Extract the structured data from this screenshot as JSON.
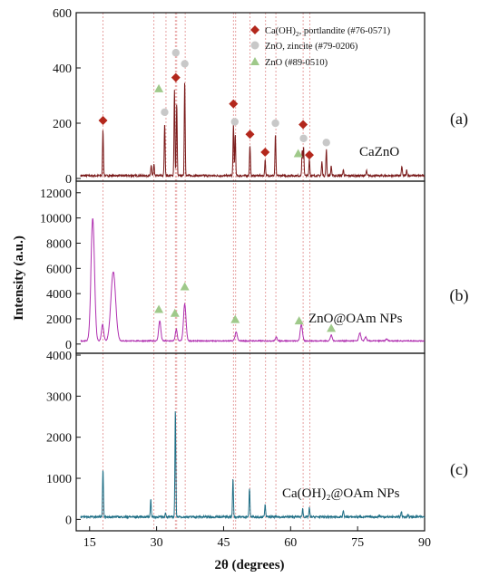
{
  "colors": {
    "caoh2_marker": "#b3271c",
    "zno_zincite_marker": "#c8c8c8",
    "zno_89_marker": "#9fc98a",
    "dash_line": "#e08a8a",
    "pattern_a": "#7a1a1a",
    "pattern_b": "#b02fb0",
    "pattern_c": "#1f6f86"
  },
  "legend": {
    "caoh2": {
      "text": "Ca(OH)",
      "sub": "2",
      "rest": ", portlandite (#76-0571)"
    },
    "zincite": {
      "text": "ZnO, zincite (#79-0206)"
    },
    "zno89": {
      "text": "ZnO (#89-0510)"
    }
  },
  "chart_data": {
    "type": "line",
    "xlabel": "2θ (degrees)",
    "ylabel": "Intensity (a.u.)",
    "xlim": [
      12,
      90
    ],
    "xticks": [
      "15",
      "30",
      "45",
      "60",
      "75",
      "90"
    ],
    "reference_lines": [
      18.0,
      29.4,
      32.1,
      34.2,
      34.5,
      36.4,
      47.2,
      47.7,
      50.9,
      54.4,
      56.7,
      62.8,
      64.3
    ],
    "panels": [
      {
        "tag": "(a)",
        "sample": "CaZnO",
        "ylim": [
          0,
          600
        ],
        "yticks": [
          "0",
          "200",
          "400",
          "600"
        ],
        "peaks": [
          [
            18.0,
            165
          ],
          [
            28.8,
            38
          ],
          [
            29.4,
            40
          ],
          [
            31.8,
            190
          ],
          [
            34.0,
            310
          ],
          [
            34.5,
            260
          ],
          [
            36.3,
            345
          ],
          [
            47.2,
            185
          ],
          [
            47.6,
            150
          ],
          [
            50.9,
            110
          ],
          [
            54.3,
            60
          ],
          [
            56.6,
            150
          ],
          [
            62.6,
            90
          ],
          [
            62.9,
            105
          ],
          [
            64.2,
            60
          ],
          [
            67.0,
            50
          ],
          [
            68.0,
            95
          ],
          [
            69.1,
            35
          ],
          [
            71.8,
            22
          ],
          [
            77.0,
            18
          ],
          [
            84.9,
            35
          ],
          [
            86.0,
            20
          ]
        ],
        "markers": [
          {
            "series": "caoh2",
            "x": 18.0,
            "y": 210
          },
          {
            "series": "caoh2",
            "x": 34.3,
            "y": 365
          },
          {
            "series": "caoh2",
            "x": 47.2,
            "y": 270
          },
          {
            "series": "caoh2",
            "x": 50.9,
            "y": 160
          },
          {
            "series": "caoh2",
            "x": 54.3,
            "y": 95
          },
          {
            "series": "caoh2",
            "x": 62.8,
            "y": 195
          },
          {
            "series": "caoh2",
            "x": 64.2,
            "y": 85
          },
          {
            "series": "zincite",
            "x": 31.8,
            "y": 240
          },
          {
            "series": "zincite",
            "x": 34.3,
            "y": 455
          },
          {
            "series": "zincite",
            "x": 36.3,
            "y": 415
          },
          {
            "series": "zincite",
            "x": 47.5,
            "y": 205
          },
          {
            "series": "zincite",
            "x": 56.6,
            "y": 200
          },
          {
            "series": "zincite",
            "x": 62.9,
            "y": 145
          },
          {
            "series": "zincite",
            "x": 68.0,
            "y": 130
          },
          {
            "series": "zno89",
            "x": 30.5,
            "y": 325
          },
          {
            "series": "zno89",
            "x": 61.7,
            "y": 90
          }
        ]
      },
      {
        "tag": "(b)",
        "sample": "ZnO@OAm NPs",
        "ylim": [
          -300,
          12200
        ],
        "yticks": [
          "0",
          "2000",
          "4000",
          "6000",
          "8000",
          "10000",
          "12000"
        ],
        "peaks": [
          [
            15.7,
            9700,
            0.55
          ],
          [
            17.9,
            1300,
            0.35
          ],
          [
            20.3,
            5500,
            0.75
          ],
          [
            30.7,
            1600,
            0.35
          ],
          [
            34.4,
            900,
            0.3
          ],
          [
            36.3,
            2900,
            0.4
          ],
          [
            47.8,
            700,
            0.35
          ],
          [
            56.8,
            300,
            0.3
          ],
          [
            62.4,
            1300,
            0.35
          ],
          [
            69.1,
            450,
            0.3
          ],
          [
            75.5,
            650,
            0.3
          ],
          [
            76.8,
            300,
            0.3
          ],
          [
            81.5,
            150,
            0.3
          ]
        ],
        "markers": [
          {
            "series": "zno89",
            "x": 30.5,
            "y": 2750
          },
          {
            "series": "zno89",
            "x": 34.1,
            "y": 2450
          },
          {
            "series": "zno89",
            "x": 36.3,
            "y": 4550
          },
          {
            "series": "zno89",
            "x": 47.6,
            "y": 1950
          },
          {
            "series": "zno89",
            "x": 61.9,
            "y": 1850
          },
          {
            "series": "zno89",
            "x": 69.1,
            "y": 1250
          }
        ]
      },
      {
        "tag": "(c)",
        "sample": "Ca(OH)₂@OAm NPs",
        "ylim": [
          -80,
          4000
        ],
        "yticks": [
          "0",
          "1000",
          "2000",
          "3000",
          "4000"
        ],
        "peaks": [
          [
            18.0,
            1150
          ],
          [
            28.7,
            430
          ],
          [
            32.0,
            100
          ],
          [
            34.2,
            2600
          ],
          [
            47.1,
            920
          ],
          [
            50.8,
            700
          ],
          [
            54.3,
            330
          ],
          [
            62.7,
            200
          ],
          [
            64.2,
            220
          ],
          [
            71.8,
            170
          ],
          [
            79.9,
            40
          ],
          [
            84.8,
            140
          ],
          [
            86.3,
            60
          ]
        ],
        "markers": []
      }
    ]
  }
}
